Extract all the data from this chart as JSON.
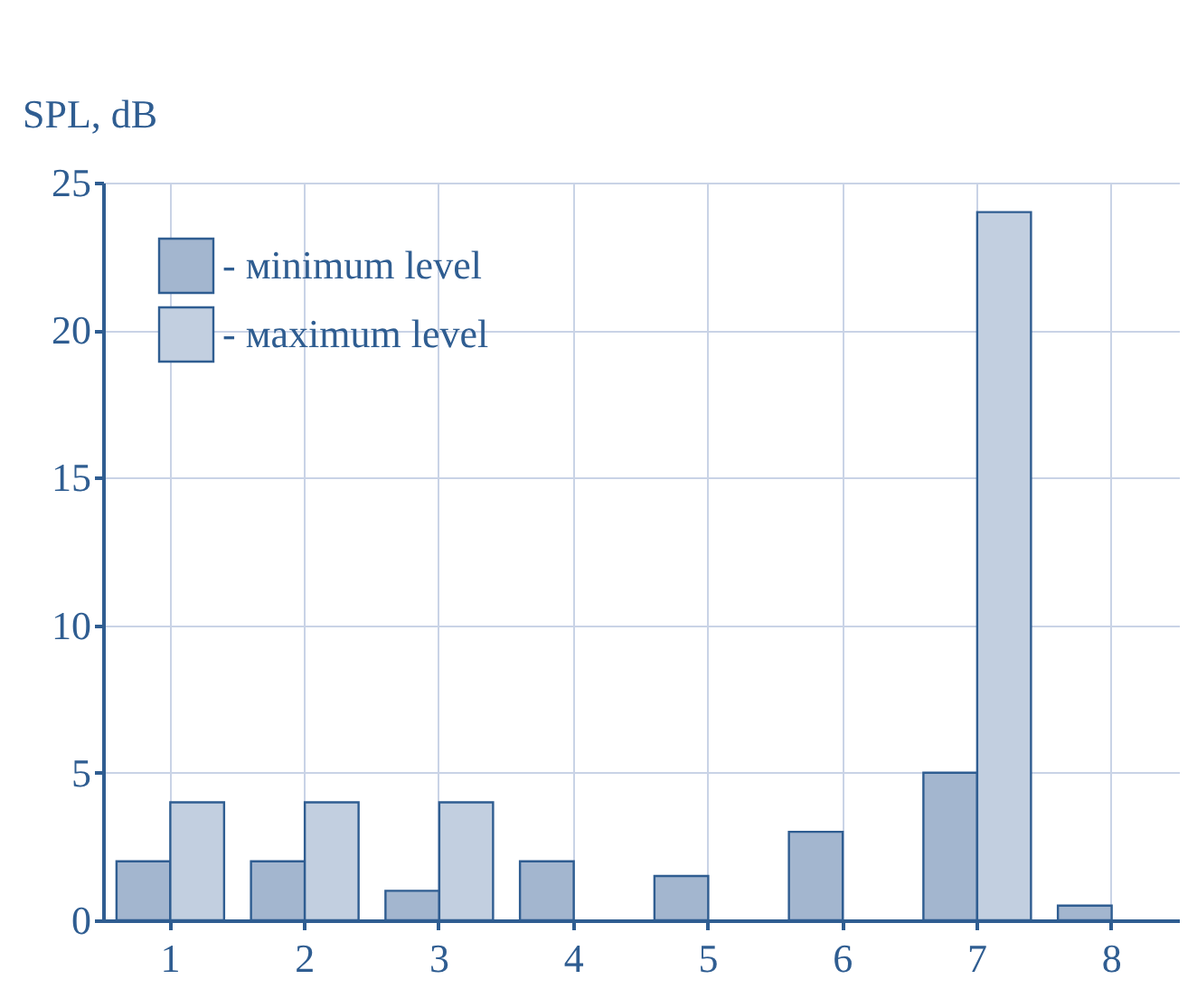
{
  "chart_data": {
    "type": "bar",
    "ylabel": "SPL, dB",
    "categories": [
      "1",
      "2",
      "3",
      "4",
      "5",
      "6",
      "7",
      "8"
    ],
    "series": [
      {
        "name": "- мinimum level",
        "color": "#a3b6cf",
        "values": [
          2,
          2,
          1,
          2,
          1.5,
          3,
          5,
          0.5
        ]
      },
      {
        "name": "- мaximum level",
        "color": "#c2cfe0",
        "values": [
          4,
          4,
          4,
          null,
          null,
          null,
          24,
          null
        ]
      }
    ],
    "ylim": [
      0,
      25
    ],
    "yticks": [
      0,
      5,
      10,
      15,
      20,
      25
    ],
    "grid": true,
    "legend": "top left"
  }
}
